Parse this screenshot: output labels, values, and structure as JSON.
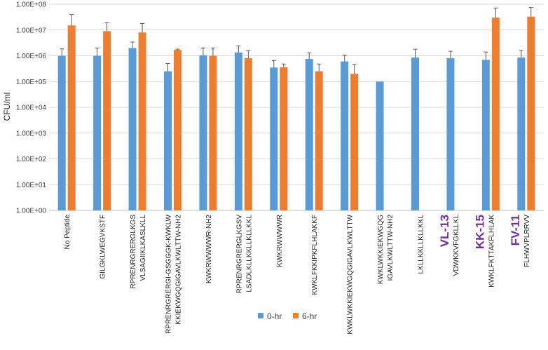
{
  "chart_data": {
    "type": "bar",
    "ylabel": "CFU/ml",
    "yscale": "log",
    "ylim": [
      1,
      100000000
    ],
    "ytick_labels": [
      "1.00E+00",
      "1.00E+01",
      "1.00E+02",
      "1.00E+03",
      "1.00E+04",
      "1.00E+05",
      "1.00E+06",
      "1.00E+07",
      "1.00E+08"
    ],
    "grid": true,
    "legend_position": "bottom",
    "categories": [
      {
        "tag": "",
        "lines": [
          "No Peptide"
        ]
      },
      {
        "tag": "",
        "lines": [
          "GILGKLWEGVKSTF"
        ]
      },
      {
        "tag": "",
        "lines": [
          "RPRENRGRERGLKGS",
          "VLSAGIIKLKASLKLL"
        ]
      },
      {
        "tag": "",
        "lines": [
          "RPRENRGRERGI-GSGGGK-KWKLW",
          "KKIEKWGQGIGAVLKWLTTW-NH2"
        ]
      },
      {
        "tag": "",
        "lines": [
          "KWKRWWWWR-NH2"
        ]
      },
      {
        "tag": "",
        "lines": [
          "RPRENRGRERGLKGSV",
          "LSADLKLLKKLLKLLKKL"
        ]
      },
      {
        "tag": "",
        "lines": [
          "KWKRWWWWR"
        ]
      },
      {
        "tag": "",
        "lines": [
          "KWKLFKKIPKFLHLAKKF"
        ]
      },
      {
        "tag": "",
        "lines": [
          "KWKLWKKIEKWGQGIGAVLKWLTTW"
        ]
      },
      {
        "tag": "",
        "lines": [
          "KWKLWKKIEKWGQG",
          "IGAVLKWLTTW-NH2"
        ]
      },
      {
        "tag": "",
        "lines": [
          "LKLLKKLLKLLKKL"
        ]
      },
      {
        "tag": "VL-13",
        "lines": [
          "VDWKKVFGKLLKL"
        ]
      },
      {
        "tag": "KK-15",
        "lines": [
          "KWKLFKTTAKFLHLAK"
        ]
      },
      {
        "tag": "FV-11",
        "lines": [
          "FLHWVPLRRVV"
        ]
      }
    ],
    "series": [
      {
        "name": "0-hr",
        "color": "#5b9bd5",
        "values": [
          1000000,
          1000000,
          2000000,
          250000,
          1050000,
          1350000,
          350000,
          750000,
          600000,
          100000,
          850000,
          800000,
          700000,
          850000
        ],
        "error_upper": [
          1850000,
          2000000,
          3400000,
          500000,
          2000000,
          2400000,
          650000,
          1300000,
          1050000,
          null,
          1800000,
          1500000,
          1400000,
          1600000
        ]
      },
      {
        "name": "6-hr",
        "color": "#ed7d31",
        "values": [
          15000000,
          9000000,
          8000000,
          1700000,
          1000000,
          800000,
          360000,
          250000,
          200000,
          null,
          null,
          null,
          30000000,
          33000000
        ],
        "error_upper": [
          40000000,
          19000000,
          18000000,
          1800000,
          2000000,
          1600000,
          480000,
          480000,
          460000,
          null,
          null,
          null,
          70000000,
          75000000
        ]
      }
    ]
  },
  "colors": {
    "tag": "#7030a0",
    "grid": "#d9d9d9",
    "axis": "#bfbfbf"
  }
}
